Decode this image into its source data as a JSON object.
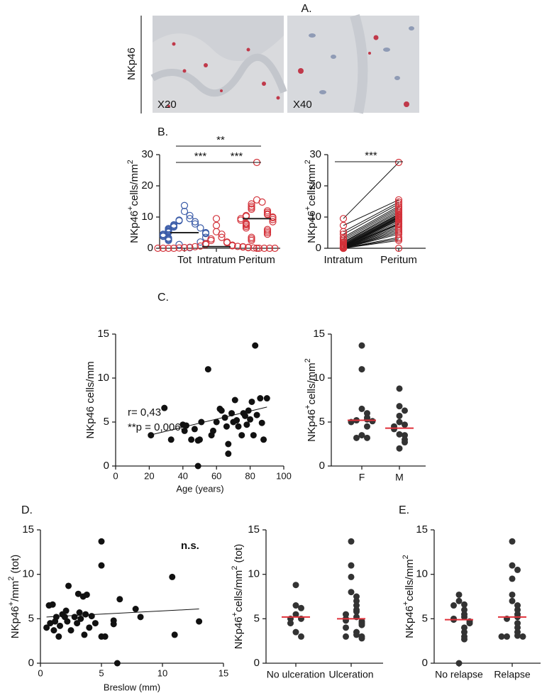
{
  "panel_labels": [
    "A.",
    "B.",
    "C.",
    "D.",
    "E."
  ],
  "images": {
    "row_label": "NKp46",
    "magnifications": [
      "X20",
      "X40"
    ]
  },
  "chart_data": [
    {
      "type": "dotplot",
      "y_label": [
        {
          "text": "NKp46"
        },
        {
          "text": "+",
          "sup": true
        },
        {
          "text": "cells/mm"
        },
        {
          "text": "2",
          "sup": true
        }
      ],
      "categories": [
        "Tot",
        "Intratum",
        "Peritum"
      ],
      "values": [
        [
          13.7,
          11.8,
          10.5,
          9.5,
          9,
          8.8,
          8.5,
          7.8,
          7.5,
          7.3,
          7,
          6.8,
          6.5,
          6.3,
          6,
          5.8,
          5.5,
          5.3,
          5.1,
          5,
          4.9,
          4.7,
          4.5,
          4.3,
          4,
          3.8,
          3.5,
          3.3,
          3,
          2.8,
          2.5,
          2,
          1.2,
          0.2
        ],
        [
          9.5,
          7.3,
          5.3,
          4.5,
          3.5,
          3,
          2.5,
          2,
          1.8,
          1.5,
          1.2,
          1,
          0.8,
          0.7,
          0.6,
          0.5,
          0.5,
          0.4,
          0.3,
          0.3,
          0.2,
          0.2,
          0.1,
          0.1,
          0,
          0,
          0,
          0,
          0,
          0,
          0,
          0
        ],
        [
          27.5,
          15.5,
          14.8,
          14.2,
          13.5,
          13,
          12.5,
          12,
          11.5,
          11,
          10.8,
          10.5,
          10.2,
          10,
          9.8,
          9.5,
          9.2,
          9,
          8.5,
          8,
          7.8,
          7.5,
          7,
          6.5,
          6,
          5.5,
          5,
          4.5,
          3.5,
          3,
          2.5,
          0
        ]
      ],
      "colors": [
        "#3b5ca8",
        "#d3323a",
        "#d3323a"
      ],
      "marker": "open",
      "medians": [
        5,
        0.5,
        9.5
      ],
      "median_color": "#222222",
      "ylim": [
        0,
        30
      ],
      "yticks": [
        0,
        10,
        20,
        30
      ],
      "brackets": [
        {
          "text": "**",
          "between": [
            "Tot",
            "Peritum"
          ]
        },
        {
          "text": "***",
          "between": [
            "Tot",
            "Intratum"
          ]
        },
        {
          "text": "***",
          "between": [
            "Intratum",
            "Peritum"
          ]
        }
      ]
    },
    {
      "type": "paired",
      "y_label": [
        {
          "text": "NKp46"
        },
        {
          "text": "+",
          "sup": true
        },
        {
          "text": "cells/mm"
        },
        {
          "text": "2",
          "sup": true
        }
      ],
      "categories": [
        "Intratum",
        "Peritum"
      ],
      "values": [
        [
          9.5,
          7.3,
          5.3,
          4.5,
          3.5,
          3,
          2.5,
          2,
          1.8,
          1.5,
          1.2,
          1,
          0.8,
          0.7,
          0.6,
          0.5,
          0.5,
          0.4,
          0.3,
          0.3,
          0.2,
          0.2,
          0.1,
          0.1,
          0,
          0,
          0,
          0,
          0,
          0,
          0,
          0
        ],
        [
          27.5,
          15.5,
          14.8,
          14.2,
          13.5,
          13,
          12.5,
          12,
          11.5,
          11,
          10.8,
          10.5,
          10.2,
          10,
          9.8,
          9.5,
          9.2,
          9,
          8.5,
          8,
          7.8,
          7.5,
          7,
          6.5,
          6,
          5.5,
          5,
          4.5,
          3.5,
          3,
          2.5,
          0
        ]
      ],
      "color": "#d3323a",
      "line_color": "#111111",
      "marker": "open",
      "ylim": [
        0,
        30
      ],
      "yticks": [
        0,
        10,
        20,
        30
      ],
      "brackets": [
        {
          "text": "***",
          "between": [
            "Intratum",
            "Peritum"
          ]
        }
      ]
    },
    {
      "type": "scatter",
      "y_label": [
        {
          "text": "NKp46 cells/mm"
        }
      ],
      "x_label": "Age (years)",
      "x": [
        21,
        29,
        33,
        40,
        41,
        42,
        45,
        47,
        49,
        49,
        50,
        51,
        55,
        57,
        58,
        60,
        62,
        63,
        65,
        66,
        67,
        67,
        69,
        70,
        71,
        72,
        73,
        75,
        76,
        77,
        78,
        79,
        80,
        81,
        82,
        83,
        84,
        86,
        87,
        88,
        90
      ],
      "y": [
        3.5,
        6.6,
        3,
        4.7,
        4,
        4.6,
        3,
        4.2,
        0,
        2.9,
        3,
        5,
        11,
        3.5,
        4,
        5,
        6.5,
        6.3,
        5.5,
        4.5,
        2.5,
        1.4,
        6,
        5,
        7.5,
        5.2,
        4.5,
        3.5,
        6,
        5.7,
        4.7,
        6.3,
        5.3,
        7.3,
        3.5,
        13.7,
        5.8,
        7.7,
        4.9,
        3,
        7.7
      ],
      "color": "#111111",
      "marker": "filled",
      "xlim": [
        0,
        100
      ],
      "xticks": [
        0,
        20,
        40,
        60,
        80,
        100
      ],
      "ylim": [
        0,
        15
      ],
      "yticks": [
        0,
        5,
        10,
        15
      ],
      "fit": {
        "x": [
          20,
          90
        ],
        "y": [
          3.5,
          6.7
        ]
      },
      "annotations": [
        "r= 0,43",
        "**p = 0,0063"
      ]
    },
    {
      "type": "dotplot",
      "y_label": [
        {
          "text": "NKp46"
        },
        {
          "text": "+",
          "sup": true
        },
        {
          "text": "cells/mm"
        },
        {
          "text": "2",
          "sup": true
        }
      ],
      "categories": [
        "F",
        "M"
      ],
      "values": [
        [
          13.7,
          11,
          6.5,
          6,
          5.5,
          5.3,
          5.2,
          5.1,
          5,
          4.5,
          3.5,
          3.2,
          3.2
        ],
        [
          8.8,
          6.8,
          6.3,
          5.7,
          5,
          4.7,
          4.5,
          4.2,
          3.6,
          3.5,
          3,
          2.7,
          2
        ]
      ],
      "colors": [
        "#333333",
        "#333333"
      ],
      "marker": "filled",
      "medians": [
        5.2,
        4.3
      ],
      "median_color": "#e0303a",
      "ylim": [
        0,
        15
      ],
      "yticks": [
        0,
        5,
        10,
        15
      ]
    },
    {
      "type": "scatter",
      "y_label": [
        {
          "text": "NKp46"
        },
        {
          "text": "+",
          "sup": true
        },
        {
          "text": "/mm"
        },
        {
          "text": "2",
          "sup": true
        },
        {
          "text": " (tot)"
        }
      ],
      "x_label": "Breslow (mm)",
      "x": [
        0.5,
        0.7,
        0.8,
        1,
        1.1,
        1.2,
        1.3,
        1.5,
        1.6,
        1.8,
        2,
        2.1,
        2.2,
        2.3,
        2.5,
        2.8,
        3,
        3.1,
        3.2,
        3.3,
        3.5,
        3.6,
        3.7,
        3.8,
        4,
        4.2,
        4.5,
        5,
        5,
        5,
        5.3,
        6,
        6,
        6.3,
        6.5,
        7.8,
        8.2,
        10.8,
        11,
        13
      ],
      "y": [
        4,
        6.5,
        4.5,
        6.6,
        3.7,
        4.7,
        5.2,
        3,
        4.2,
        5.5,
        5.2,
        5.9,
        4.7,
        8.7,
        3.7,
        5.2,
        4.5,
        7.8,
        5.7,
        5,
        7.5,
        3.2,
        5.5,
        7.7,
        4,
        5.3,
        4.5,
        13.7,
        11,
        3,
        3,
        4.8,
        4.4,
        0,
        7.2,
        6.1,
        5.2,
        9.7,
        3.2,
        4.7
      ],
      "color": "#111111",
      "marker": "filled",
      "xlim": [
        0,
        15
      ],
      "xticks": [
        0,
        5,
        10,
        15
      ],
      "ylim": [
        0,
        15
      ],
      "yticks": [
        0,
        5,
        10,
        15
      ],
      "fit": {
        "x": [
          0.5,
          13
        ],
        "y": [
          5.2,
          6.1
        ]
      },
      "annotations": [
        "n.s."
      ]
    },
    {
      "type": "dotplot",
      "y_label": [
        {
          "text": "NKp46"
        },
        {
          "text": "+",
          "sup": true
        },
        {
          "text": "cells/mm"
        },
        {
          "text": "2",
          "sup": true
        },
        {
          "text": " (tot)"
        }
      ],
      "categories": [
        "No ulceration",
        "Ulceration"
      ],
      "values": [
        [
          8.8,
          6.5,
          6.2,
          5.5,
          5,
          5,
          4.5,
          3.5,
          3
        ],
        [
          13.7,
          11,
          9.7,
          8,
          7.5,
          7,
          6.5,
          6,
          5.8,
          5.5,
          5.2,
          5,
          4.8,
          4.7,
          4.5,
          4.3,
          4,
          3.5,
          3.2,
          3,
          3,
          2.8
        ]
      ],
      "colors": [
        "#333333",
        "#333333"
      ],
      "marker": "filled",
      "medians": [
        5.2,
        5
      ],
      "median_color": "#e0303a",
      "ylim": [
        0,
        15
      ],
      "yticks": [
        0,
        5,
        10,
        15
      ]
    },
    {
      "type": "dotplot",
      "y_label": [
        {
          "text": "NKp46"
        },
        {
          "text": "+",
          "sup": true
        },
        {
          "text": "cells/mm"
        },
        {
          "text": "2",
          "sup": true
        }
      ],
      "categories": [
        "No relapse",
        "Relapse"
      ],
      "values": [
        [
          7.7,
          7,
          6.6,
          6.5,
          6,
          5.5,
          5.2,
          5,
          4.9,
          4.7,
          4.5,
          4,
          3.5,
          3,
          2.7,
          0
        ],
        [
          13.7,
          11,
          10.5,
          9.5,
          7.7,
          7,
          6.5,
          6,
          5.5,
          5.2,
          5,
          4.5,
          4,
          3.5,
          3.1,
          3,
          3,
          3
        ]
      ],
      "colors": [
        "#333333",
        "#333333"
      ],
      "marker": "filled",
      "medians": [
        4.9,
        5.2
      ],
      "median_color": "#e0303a",
      "ylim": [
        0,
        15
      ],
      "yticks": [
        0,
        5,
        10,
        15
      ]
    }
  ]
}
